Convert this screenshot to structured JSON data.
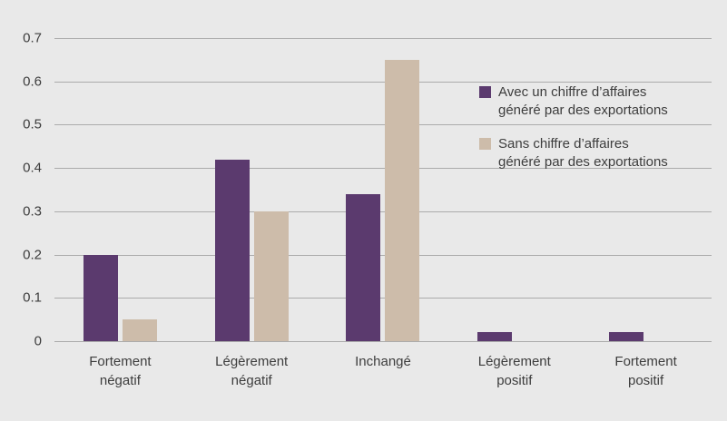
{
  "chart_data": {
    "type": "bar",
    "categories": [
      "Fortement négatif",
      "Légèrement négatif",
      "Inchangé",
      "Légèrement positif",
      "Fortement positif"
    ],
    "category_lines": [
      [
        "Fortement",
        "négatif"
      ],
      [
        "Légèrement",
        "négatif"
      ],
      [
        "Inchangé"
      ],
      [
        "Légèrement",
        "positif"
      ],
      [
        "Fortement",
        "positif"
      ]
    ],
    "series": [
      {
        "name": "Avec un chiffre d’affaires généré par des exportations",
        "color": "#5b3a6e",
        "values": [
          0.2,
          0.42,
          0.34,
          0.02,
          0.02
        ]
      },
      {
        "name": "Sans chiffre d’affaires généré par des exportations",
        "color": "#cdbcaa",
        "values": [
          0.05,
          0.3,
          0.65,
          0,
          0
        ]
      }
    ],
    "title": "",
    "xlabel": "",
    "ylabel": "",
    "ylim": [
      0,
      0.7
    ],
    "ytick_step": 0.1,
    "yticks": [
      "0.7",
      "0.6",
      "0.5",
      "0.4",
      "0.3",
      "0.2",
      "0.1",
      "0"
    ],
    "grid": true,
    "legend_position": "inside-top-right"
  },
  "legend": {
    "items": [
      {
        "label_line1": "Avec un chiffre d’affaires",
        "label_line2": "généré par des exportations",
        "color": "#5b3a6e"
      },
      {
        "label_line1": "Sans chiffre d’affaires",
        "label_line2": "généré par des exportations",
        "color": "#cdbcaa"
      }
    ]
  },
  "colors": {
    "background": "#e9e9e9",
    "gridline": "#ababab",
    "text": "#3d3d3d",
    "series_with_exports": "#5b3a6e",
    "series_without_exports": "#cdbcaa"
  }
}
